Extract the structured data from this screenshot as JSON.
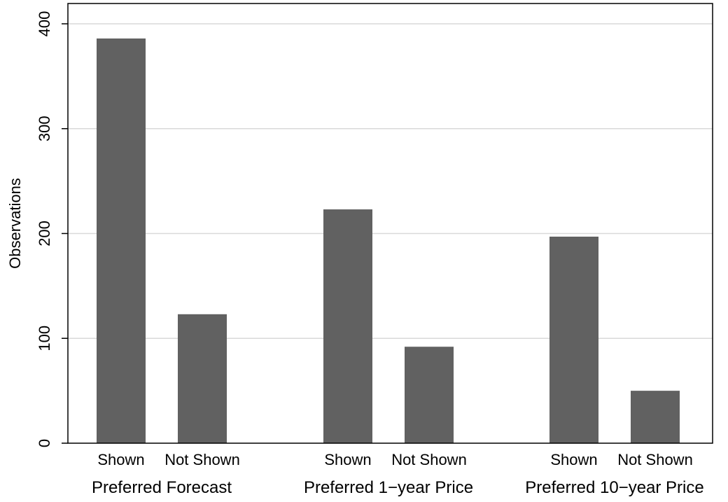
{
  "chart_data": {
    "type": "bar",
    "title": "",
    "xlabel": "",
    "ylabel": "Observations",
    "ylim": [
      0,
      400
    ],
    "yticks": [
      0,
      100,
      200,
      300,
      400
    ],
    "grid": true,
    "bar_color": "#616161",
    "grid_color": "#d9d9d9",
    "groups": [
      {
        "label": "Preferred Forecast",
        "bars": [
          {
            "category": "Shown",
            "value": 386
          },
          {
            "category": "Not Shown",
            "value": 123
          }
        ]
      },
      {
        "label": "Preferred 1−year Price",
        "bars": [
          {
            "category": "Shown",
            "value": 223
          },
          {
            "category": "Not Shown",
            "value": 92
          }
        ]
      },
      {
        "label": "Preferred 10−year Price",
        "bars": [
          {
            "category": "Shown",
            "value": 197
          },
          {
            "category": "Not Shown",
            "value": 50
          }
        ]
      }
    ]
  }
}
